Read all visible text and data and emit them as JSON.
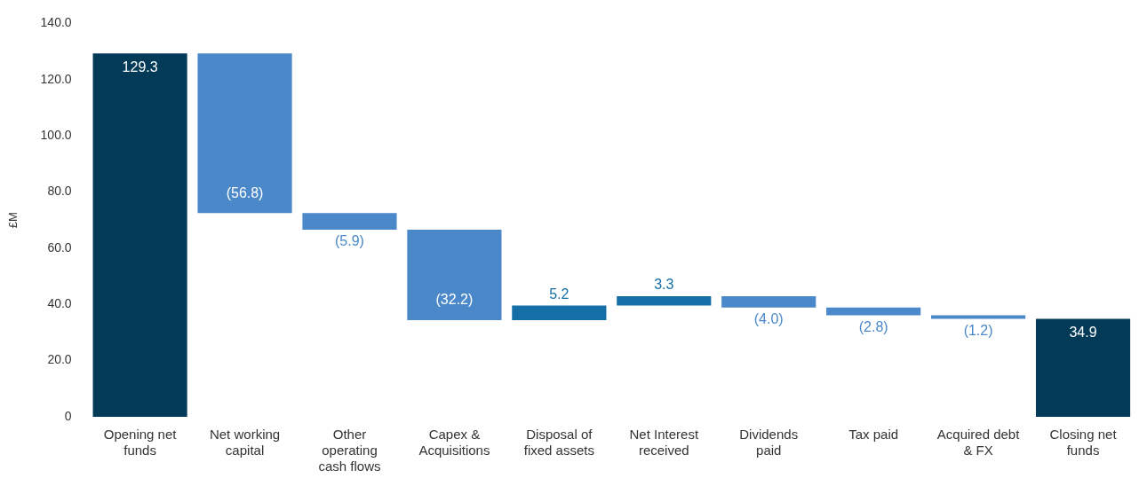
{
  "chart_data": {
    "type": "bar",
    "ylabel": "£M",
    "categories": [
      "Opening net funds",
      "Net working capital",
      "Other operating cash flows",
      "Capex & Acquisitions",
      "Disposal of fixed assets",
      "Net Interest received",
      "Dividends paid",
      "Tax paid",
      "Acquired debt & FX",
      "Closing net funds"
    ],
    "values": [
      129.3,
      -56.8,
      -5.9,
      -32.2,
      5.2,
      3.3,
      -4.0,
      -2.8,
      -1.2,
      34.9
    ],
    "base": [
      0,
      129.3,
      72.5,
      66.6,
      34.4,
      39.6,
      42.9,
      38.9,
      36.1,
      0
    ],
    "colors": [
      "#023a57",
      "#4a88c9",
      "#4a88c9",
      "#4a88c9",
      "#156fa6",
      "#156fa6",
      "#4a88c9",
      "#4a88c9",
      "#4a88c9",
      "#023a57"
    ],
    "value_labels": [
      "129.3",
      "(56.8)",
      "(5.9)",
      "(32.2)",
      "5.2",
      "3.3",
      "(4.0)",
      "(2.8)",
      "(1.2)",
      "34.9"
    ],
    "ylim": [
      0,
      140
    ],
    "yticks": [
      0,
      {
        "value": 20,
        "label": "20.0"
      },
      {
        "value": 40,
        "label": "40.0"
      },
      {
        "value": 60,
        "label": "60.0"
      },
      {
        "value": 80,
        "label": "80.0"
      },
      {
        "value": 100,
        "label": "100.0"
      },
      {
        "value": 120,
        "label": "120.0"
      },
      {
        "value": 140,
        "label": "140.0"
      }
    ],
    "grid": false,
    "legend": false
  }
}
